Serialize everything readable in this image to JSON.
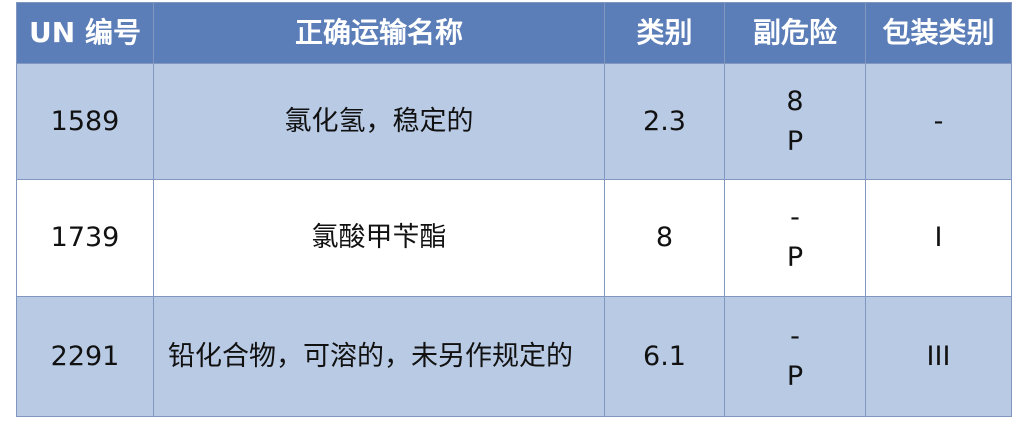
{
  "table": {
    "headers": [
      "UN 编号",
      "正确运输名称",
      "类别",
      "副危险",
      "包装类别"
    ],
    "rows": [
      {
        "un": "1589",
        "name": "氯化氢，稳定的",
        "class": "2.3",
        "subsidiary": [
          "8",
          "P"
        ],
        "packing_group": "-"
      },
      {
        "un": "1739",
        "name": "氯酸甲苄酯",
        "class": "8",
        "subsidiary": [
          "-",
          "P"
        ],
        "packing_group": "I"
      },
      {
        "un": "2291",
        "name": "铅化合物，可溶的，未另作规定的",
        "class": "6.1",
        "subsidiary": [
          "-",
          "P"
        ],
        "packing_group": "III"
      }
    ]
  },
  "colors": {
    "header_bg": "#5b7db8",
    "alt_row_bg": "#b9cae4",
    "border": "#8197bf"
  }
}
